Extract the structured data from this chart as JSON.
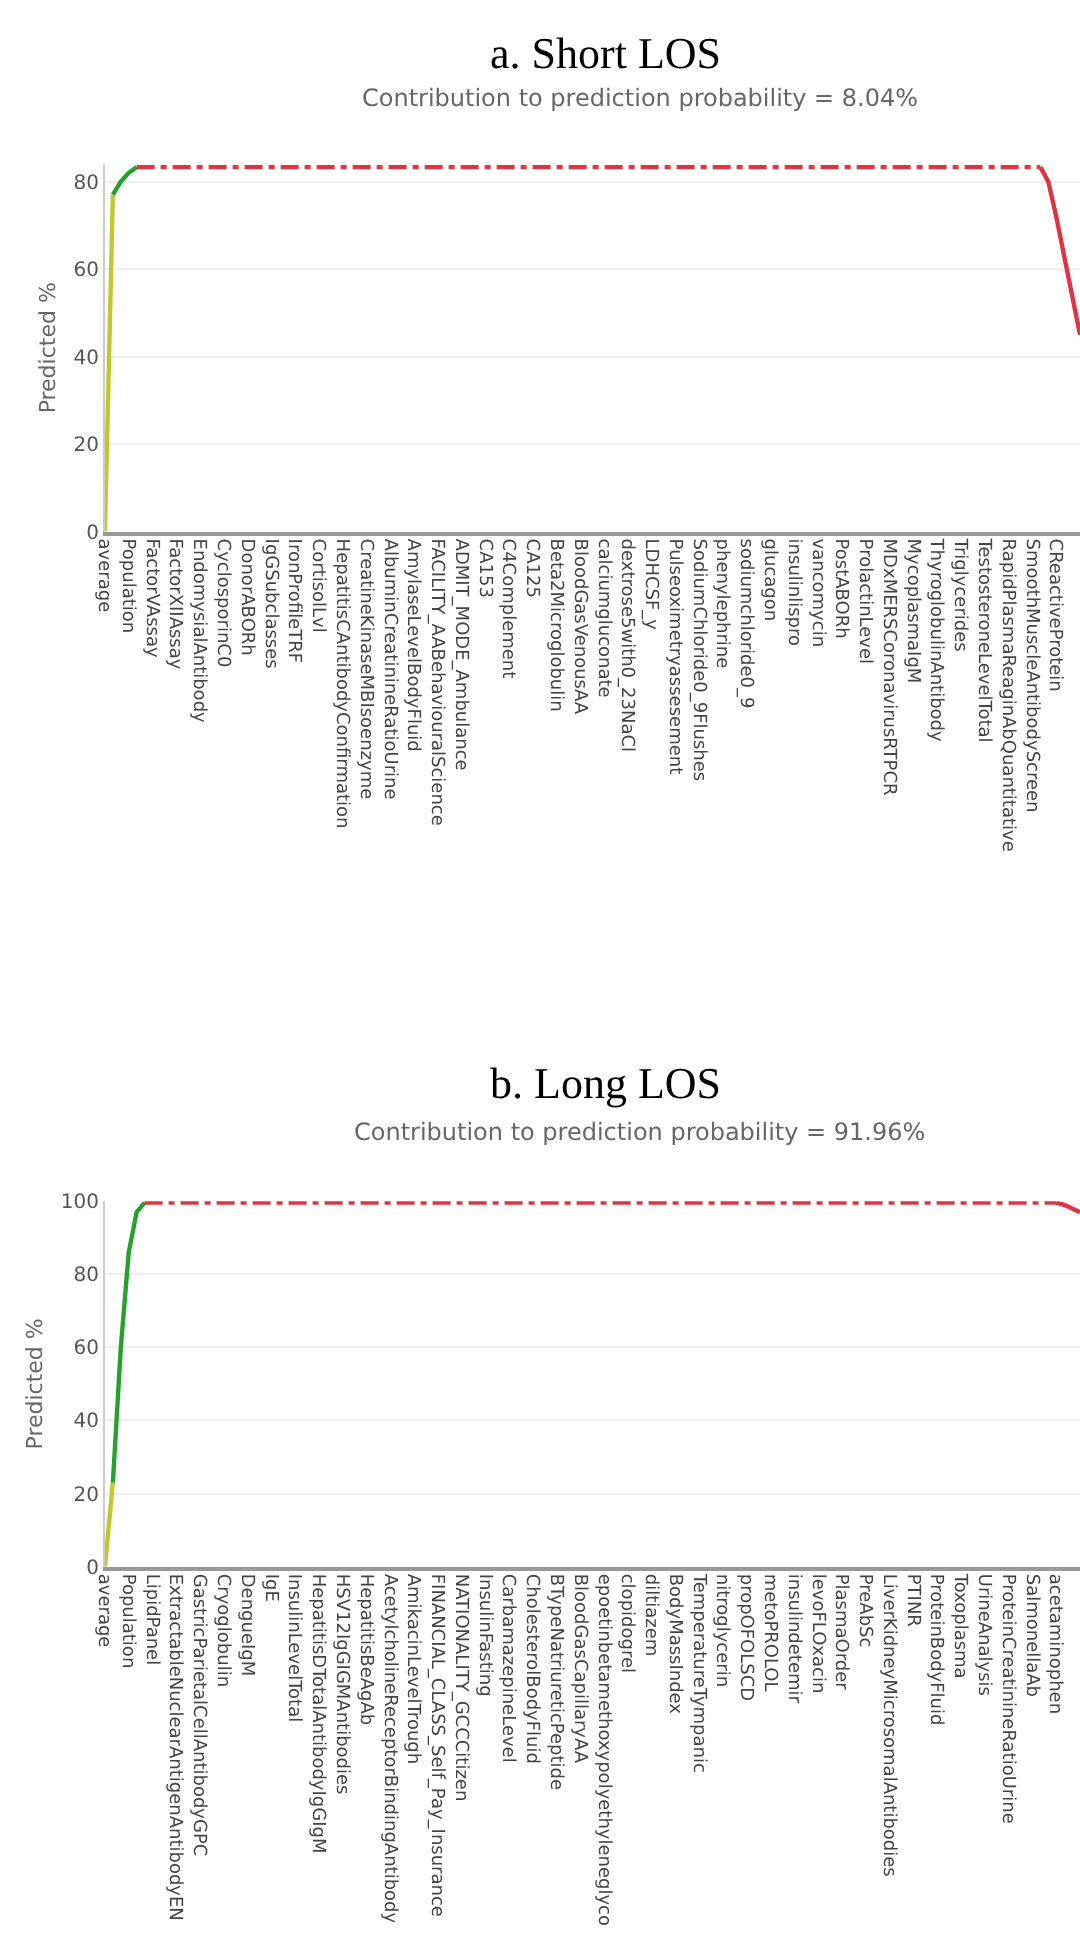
{
  "chart_data": [
    {
      "type": "line",
      "title": "a. Short LOS",
      "subtitle": "Contribution to prediction probability = 8.04%",
      "ylabel": "Predicted %",
      "categories": [
        "average",
        null,
        null,
        "Population",
        null,
        null,
        "FactorVAssay",
        null,
        null,
        "FactorXIIAssay",
        null,
        null,
        "EndomysialAntibody",
        null,
        null,
        "CyclosporinC0",
        null,
        null,
        "DonorABORh",
        null,
        null,
        "IgGSubclasses",
        null,
        null,
        "IronProfileTRF",
        null,
        null,
        "CortisolLvl",
        null,
        null,
        "HepatitisCAntibodyConfirmation",
        null,
        null,
        "CreatineKinaseMBIsoenzyme",
        null,
        null,
        "AlbuminCreatinineRatioUrine",
        null,
        null,
        "AmylaseLevelBodyFluid",
        null,
        null,
        "FACILITY_AABehaviouralScience",
        null,
        null,
        "ADMIT_MODE_Ambulance",
        null,
        null,
        "CA153",
        null,
        null,
        "C4Complement",
        null,
        null,
        "CA125",
        null,
        null,
        "Beta2Microglobulin",
        null,
        null,
        "BloodGasVenousAA",
        null,
        null,
        "calciumgluconate",
        null,
        null,
        "dextrose5with0_23NaCl",
        null,
        null,
        "LDHCSF_y",
        null,
        null,
        "Pulseoximetryassesement",
        null,
        null,
        "SodiumChloride0_9Flushes",
        null,
        null,
        "phenylephrine",
        null,
        null,
        "sodiumchloride0_9",
        null,
        null,
        "glucagon",
        null,
        null,
        "insulinlispro",
        null,
        null,
        "vancomycin",
        null,
        null,
        "PostABORh",
        null,
        null,
        "ProlactinLevel",
        null,
        null,
        "MDxMERSCoronavirusRTPCR",
        null,
        null,
        "MycoplasmaIgM",
        null,
        null,
        "ThyroglobulinAntibody",
        null,
        null,
        "Triglycerides",
        null,
        null,
        "TestosteroneLevelTotal",
        null,
        null,
        "RapidPlasmaReaginAbQuantitative",
        null,
        null,
        "SmoothMuscleAntibodyScreen",
        null,
        null,
        "CReactiveProtein",
        null,
        null,
        null
      ],
      "series": [
        {
          "color": "#c5c52e",
          "line_style": "solid",
          "values": [
            0,
            77,
            null,
            null,
            null,
            null,
            null,
            null,
            null,
            null,
            null,
            null,
            null,
            null,
            null,
            null,
            null,
            null,
            null,
            null,
            null,
            null,
            null,
            null,
            null,
            null,
            null,
            null,
            null,
            null,
            null,
            null,
            null,
            null,
            null,
            null,
            null,
            null,
            null,
            null,
            null,
            null,
            null,
            null,
            null,
            null,
            null,
            null,
            null,
            null,
            null,
            null,
            null,
            null,
            null,
            null,
            null,
            null,
            null,
            null,
            null,
            null,
            null,
            null,
            null,
            null,
            null,
            null,
            null,
            null,
            null,
            null,
            null,
            null,
            null,
            null,
            null,
            null,
            null,
            null,
            null,
            null,
            null,
            null,
            null,
            null,
            null,
            null,
            null,
            null,
            null,
            null,
            null,
            null,
            null,
            null,
            null,
            null,
            null,
            null,
            null,
            null,
            null,
            null,
            null,
            null,
            null,
            null,
            null,
            null,
            null,
            null,
            null,
            null,
            null,
            null,
            null,
            null,
            null,
            null,
            null,
            null,
            null,
            null
          ]
        },
        {
          "color": "#24a32c",
          "line_style": "solid",
          "values": [
            null,
            77,
            80,
            82,
            83.3,
            null,
            null,
            null,
            null,
            null,
            null,
            null,
            null,
            null,
            null,
            null,
            null,
            null,
            null,
            null,
            null,
            null,
            null,
            null,
            null,
            null,
            null,
            null,
            null,
            null,
            null,
            null,
            null,
            null,
            null,
            null,
            null,
            null,
            null,
            null,
            null,
            null,
            null,
            null,
            null,
            null,
            null,
            null,
            null,
            null,
            null,
            null,
            null,
            null,
            null,
            null,
            null,
            null,
            null,
            null,
            null,
            null,
            null,
            null,
            null,
            null,
            null,
            null,
            null,
            null,
            null,
            null,
            null,
            null,
            null,
            null,
            null,
            null,
            null,
            null,
            null,
            null,
            null,
            null,
            null,
            null,
            null,
            null,
            null,
            null,
            null,
            null,
            null,
            null,
            null,
            null,
            null,
            null,
            null,
            null,
            null,
            null,
            null,
            null,
            null,
            null,
            null,
            null,
            null,
            null,
            null,
            null,
            null,
            null,
            null,
            null,
            null,
            null,
            null,
            null,
            null,
            null,
            null,
            null
          ]
        },
        {
          "color": "#dc3545",
          "line_style": "dotted",
          "values": [
            null,
            null,
            null,
            null,
            83.3,
            83.3,
            83.3,
            83.3,
            83.3,
            83.3,
            83.3,
            83.3,
            83.3,
            83.3,
            83.3,
            83.3,
            83.3,
            83.3,
            83.3,
            83.3,
            83.3,
            83.3,
            83.3,
            83.3,
            83.3,
            83.3,
            83.3,
            83.3,
            83.3,
            83.3,
            83.3,
            83.3,
            83.3,
            83.3,
            83.3,
            83.3,
            83.3,
            83.3,
            83.3,
            83.3,
            83.3,
            83.3,
            83.3,
            83.3,
            83.3,
            83.3,
            83.3,
            83.3,
            83.3,
            83.3,
            83.3,
            83.3,
            83.3,
            83.3,
            83.3,
            83.3,
            83.3,
            83.3,
            83.3,
            83.3,
            83.3,
            83.3,
            83.3,
            83.3,
            83.3,
            83.3,
            83.3,
            83.3,
            83.3,
            83.3,
            83.3,
            83.3,
            83.3,
            83.3,
            83.3,
            83.3,
            83.3,
            83.3,
            83.3,
            83.3,
            83.3,
            83.3,
            83.3,
            83.3,
            83.3,
            83.3,
            83.3,
            83.3,
            83.3,
            83.3,
            83.3,
            83.3,
            83.3,
            83.3,
            83.3,
            83.3,
            83.3,
            83.3,
            83.3,
            83.3,
            83.3,
            83.3,
            83.3,
            83.3,
            83.3,
            83.3,
            83.3,
            83.3,
            83.3,
            83.3,
            83.3,
            83.3,
            83.3,
            83.3,
            83.3,
            83.3,
            83.3,
            83.3,
            83.3,
            null,
            null,
            null,
            null,
            null
          ]
        },
        {
          "color": "#dc3545",
          "line_style": "solid",
          "values": [
            null,
            null,
            null,
            null,
            null,
            null,
            null,
            null,
            null,
            null,
            null,
            null,
            null,
            null,
            null,
            null,
            null,
            null,
            null,
            null,
            null,
            null,
            null,
            null,
            null,
            null,
            null,
            null,
            null,
            null,
            null,
            null,
            null,
            null,
            null,
            null,
            null,
            null,
            null,
            null,
            null,
            null,
            null,
            null,
            null,
            null,
            null,
            null,
            null,
            null,
            null,
            null,
            null,
            null,
            null,
            null,
            null,
            null,
            null,
            null,
            null,
            null,
            null,
            null,
            null,
            null,
            null,
            null,
            null,
            null,
            null,
            null,
            null,
            null,
            null,
            null,
            null,
            null,
            null,
            null,
            null,
            null,
            null,
            null,
            null,
            null,
            null,
            null,
            null,
            null,
            null,
            null,
            null,
            null,
            null,
            null,
            null,
            null,
            null,
            null,
            null,
            null,
            null,
            null,
            null,
            null,
            null,
            null,
            null,
            null,
            null,
            null,
            null,
            null,
            null,
            null,
            null,
            null,
            83.3,
            80,
            72,
            63,
            54,
            45
          ]
        }
      ],
      "ylim": [
        0,
        84
      ],
      "yticks": [
        0,
        20,
        40,
        60,
        80
      ],
      "grid": "y",
      "marker": "none"
    },
    {
      "type": "line",
      "title": "b. Long LOS",
      "subtitle": "Contribution to prediction probability = 91.96%",
      "ylabel": "Predicted %",
      "categories": [
        "average",
        null,
        null,
        "Population",
        null,
        null,
        "LipidPanel",
        null,
        null,
        "ExtractableNuclearAntigenAntibodyEN",
        null,
        null,
        "GastricParietalCellAntibodyGPC",
        null,
        null,
        "Cryoglobulin",
        null,
        null,
        "DengueIgM",
        null,
        null,
        "IgE",
        null,
        null,
        "InsulinLevelTotal",
        null,
        null,
        "HepatitisDTotalAntibodyIgGIgM",
        null,
        null,
        "HSV12IgGIGMAntibodies",
        null,
        null,
        "HepatitisBeAgAb",
        null,
        null,
        "AcetylcholineReceptorBindingAntibody",
        null,
        null,
        "AmikacinLevelTrough",
        null,
        null,
        "FINANCIAL_CLASS_Self_Pay_Insurance",
        null,
        null,
        "NATIONALITY_GCCCitizen",
        null,
        null,
        "InsulinFasting",
        null,
        null,
        "CarbamazepineLevel",
        null,
        null,
        "CholesterolBodyFluid",
        null,
        null,
        "BTypeNatriureticPeptide",
        null,
        null,
        "BloodGasCapillaryAA",
        null,
        null,
        "epoetinbetamethoxypolyethyleneglyco",
        null,
        null,
        "clopidogrel",
        null,
        null,
        "diltiazem",
        null,
        null,
        "BodyMassIndex",
        null,
        null,
        "TemperatureTympanic",
        null,
        null,
        "nitroglycerin",
        null,
        null,
        "propOFOLSCD",
        null,
        null,
        "metoPROLOL",
        null,
        null,
        "insulindetemir",
        null,
        null,
        "levoFLOxacin",
        null,
        null,
        "PlasmaOrder",
        null,
        null,
        "PreAbSc",
        null,
        null,
        "LiverKidneyMicrosomalAntibodies",
        null,
        null,
        "PTINR",
        null,
        null,
        "ProteinBodyFluid",
        null,
        null,
        "Toxoplasma",
        null,
        null,
        "UrineAnalysis",
        null,
        null,
        "ProteinCreatinineRatioUrine",
        null,
        null,
        "SalmonellaAb",
        null,
        null,
        "acetaminophen",
        null,
        null,
        null
      ],
      "series": [
        {
          "color": "#c5c52e",
          "line_style": "solid",
          "values": [
            0,
            23,
            null,
            null,
            null,
            null,
            null,
            null,
            null,
            null,
            null,
            null,
            null,
            null,
            null,
            null,
            null,
            null,
            null,
            null,
            null,
            null,
            null,
            null,
            null,
            null,
            null,
            null,
            null,
            null,
            null,
            null,
            null,
            null,
            null,
            null,
            null,
            null,
            null,
            null,
            null,
            null,
            null,
            null,
            null,
            null,
            null,
            null,
            null,
            null,
            null,
            null,
            null,
            null,
            null,
            null,
            null,
            null,
            null,
            null,
            null,
            null,
            null,
            null,
            null,
            null,
            null,
            null,
            null,
            null,
            null,
            null,
            null,
            null,
            null,
            null,
            null,
            null,
            null,
            null,
            null,
            null,
            null,
            null,
            null,
            null,
            null,
            null,
            null,
            null,
            null,
            null,
            null,
            null,
            null,
            null,
            null,
            null,
            null,
            null,
            null,
            null,
            null,
            null,
            null,
            null,
            null,
            null,
            null,
            null,
            null,
            null,
            null,
            null,
            null,
            null,
            null,
            null,
            null,
            null,
            null,
            null,
            null,
            null
          ]
        },
        {
          "color": "#24a32c",
          "line_style": "solid",
          "values": [
            null,
            23,
            60,
            86,
            97,
            99.6,
            null,
            null,
            null,
            null,
            null,
            null,
            null,
            null,
            null,
            null,
            null,
            null,
            null,
            null,
            null,
            null,
            null,
            null,
            null,
            null,
            null,
            null,
            null,
            null,
            null,
            null,
            null,
            null,
            null,
            null,
            null,
            null,
            null,
            null,
            null,
            null,
            null,
            null,
            null,
            null,
            null,
            null,
            null,
            null,
            null,
            null,
            null,
            null,
            null,
            null,
            null,
            null,
            null,
            null,
            null,
            null,
            null,
            null,
            null,
            null,
            null,
            null,
            null,
            null,
            null,
            null,
            null,
            null,
            null,
            null,
            null,
            null,
            null,
            null,
            null,
            null,
            null,
            null,
            null,
            null,
            null,
            null,
            null,
            null,
            null,
            null,
            null,
            null,
            null,
            null,
            null,
            null,
            null,
            null,
            null,
            null,
            null,
            null,
            null,
            null,
            null,
            null,
            null,
            null,
            null,
            null,
            null,
            null,
            null,
            null,
            null,
            null,
            null,
            null,
            null,
            null,
            null,
            null
          ]
        },
        {
          "color": "#dc3545",
          "line_style": "dotted",
          "values": [
            null,
            null,
            null,
            null,
            null,
            99.6,
            99.6,
            99.6,
            99.6,
            99.6,
            99.6,
            99.6,
            99.6,
            99.6,
            99.6,
            99.6,
            99.6,
            99.6,
            99.6,
            99.6,
            99.6,
            99.6,
            99.6,
            99.6,
            99.6,
            99.6,
            99.6,
            99.6,
            99.6,
            99.6,
            99.6,
            99.6,
            99.6,
            99.6,
            99.6,
            99.6,
            99.6,
            99.6,
            99.6,
            99.6,
            99.6,
            99.6,
            99.6,
            99.6,
            99.6,
            99.6,
            99.6,
            99.6,
            99.6,
            99.6,
            99.6,
            99.6,
            99.6,
            99.6,
            99.6,
            99.6,
            99.6,
            99.6,
            99.6,
            99.6,
            99.6,
            99.6,
            99.6,
            99.6,
            99.6,
            99.6,
            99.6,
            99.6,
            99.6,
            99.6,
            99.6,
            99.6,
            99.6,
            99.6,
            99.6,
            99.6,
            99.6,
            99.6,
            99.6,
            99.6,
            99.6,
            99.6,
            99.6,
            99.6,
            99.6,
            99.6,
            99.6,
            99.6,
            99.6,
            99.6,
            99.6,
            99.6,
            99.6,
            99.6,
            99.6,
            99.6,
            99.6,
            99.6,
            99.6,
            99.6,
            99.6,
            99.6,
            99.6,
            99.6,
            99.6,
            99.6,
            99.6,
            99.6,
            99.6,
            99.6,
            99.6,
            99.6,
            99.6,
            99.6,
            99.6,
            99.6,
            99.6,
            99.6,
            99.6,
            99.6,
            99.6,
            null,
            null,
            null
          ]
        },
        {
          "color": "#dc3545",
          "line_style": "solid",
          "values": [
            null,
            null,
            null,
            null,
            null,
            null,
            null,
            null,
            null,
            null,
            null,
            null,
            null,
            null,
            null,
            null,
            null,
            null,
            null,
            null,
            null,
            null,
            null,
            null,
            null,
            null,
            null,
            null,
            null,
            null,
            null,
            null,
            null,
            null,
            null,
            null,
            null,
            null,
            null,
            null,
            null,
            null,
            null,
            null,
            null,
            null,
            null,
            null,
            null,
            null,
            null,
            null,
            null,
            null,
            null,
            null,
            null,
            null,
            null,
            null,
            null,
            null,
            null,
            null,
            null,
            null,
            null,
            null,
            null,
            null,
            null,
            null,
            null,
            null,
            null,
            null,
            null,
            null,
            null,
            null,
            null,
            null,
            null,
            null,
            null,
            null,
            null,
            null,
            null,
            null,
            null,
            null,
            null,
            null,
            null,
            null,
            null,
            null,
            null,
            null,
            null,
            null,
            null,
            null,
            null,
            null,
            null,
            null,
            null,
            null,
            null,
            null,
            null,
            null,
            null,
            null,
            null,
            null,
            null,
            null,
            99.6,
            99,
            98,
            97
          ]
        }
      ],
      "ylim": [
        0,
        100
      ],
      "yticks": [
        0,
        20,
        40,
        60,
        80,
        100
      ],
      "grid": "y",
      "marker": "none"
    }
  ]
}
